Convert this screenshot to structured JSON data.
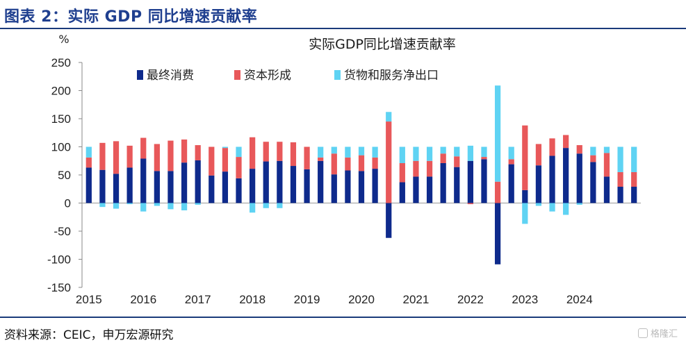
{
  "figure": {
    "header_title": "图表 2：实际 GDP 同比增速贡献率",
    "source": "资料来源：CEIC，申万宏源研究",
    "watermark": "格隆汇"
  },
  "colors": {
    "consumption": "#0e2a8c",
    "capital": "#e8585a",
    "net_exports": "#5fd3f3",
    "header": "#1f3f8f"
  },
  "chart_data": {
    "type": "bar",
    "stacked": true,
    "title": "实际GDP同比增速贡献率",
    "ylabel": "%",
    "xlabel": "",
    "ylim": [
      -150,
      250
    ],
    "yticks": [
      -150,
      -100,
      -50,
      0,
      50,
      100,
      150,
      200,
      250
    ],
    "x_tick_labels": [
      "2015",
      "2016",
      "2017",
      "2018",
      "2019",
      "2020",
      "2021",
      "2022",
      "2023",
      "2024"
    ],
    "quarters_per_year": 4,
    "legend_position": "top-left",
    "grid": false,
    "series": [
      {
        "name": "最终消费",
        "color_key": "consumption",
        "values": [
          63,
          59,
          52,
          63,
          79,
          57,
          57,
          72,
          76,
          49,
          56,
          44,
          61,
          74,
          75,
          66,
          60,
          75,
          51,
          58,
          57,
          61,
          -62,
          37,
          47,
          47,
          71,
          64,
          75,
          78,
          -109,
          69,
          23,
          67,
          84,
          98,
          88,
          73,
          47,
          29,
          29
        ]
      },
      {
        "name": "资本形成",
        "color_key": "capital",
        "values": [
          18,
          48,
          58,
          39,
          37,
          48,
          54,
          41,
          27,
          51,
          42,
          38,
          56,
          35,
          34,
          42,
          40,
          6,
          37,
          23,
          28,
          20,
          145,
          34,
          28,
          28,
          17,
          19,
          -2,
          4,
          38,
          9,
          115,
          38,
          31,
          23,
          15,
          12,
          42,
          26,
          26
        ]
      },
      {
        "name": "货物和服务净出口",
        "color_key": "net_exports",
        "values": [
          19,
          -7,
          -10,
          -2,
          -15,
          -5,
          -11,
          -13,
          -3,
          0,
          2,
          18,
          -17,
          -9,
          -9,
          0,
          0,
          19,
          12,
          19,
          15,
          19,
          17,
          29,
          25,
          25,
          12,
          17,
          27,
          18,
          171,
          22,
          -37,
          -5,
          -15,
          -21,
          -3,
          15,
          11,
          45,
          45
        ]
      }
    ]
  }
}
